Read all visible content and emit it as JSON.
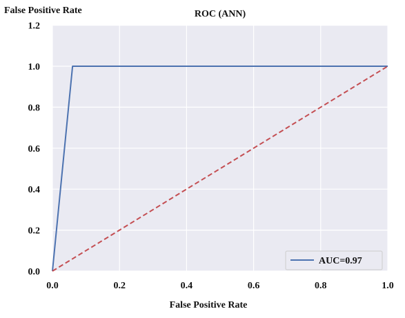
{
  "chart_data": {
    "type": "line",
    "title": "ROC (ANN)",
    "xlabel": "False Positive Rate",
    "ylabel": "False Positive Rate",
    "xlim": [
      0,
      1
    ],
    "ylim": [
      0,
      1.2
    ],
    "xticks": [
      "0.0",
      "0.2",
      "0.4",
      "0.6",
      "0.8",
      "1.0"
    ],
    "yticks": [
      "0.0",
      "0.2",
      "0.4",
      "0.6",
      "0.8",
      "1.0",
      "1.2"
    ],
    "grid": true,
    "legend_position": "bottom-right",
    "series": [
      {
        "name": "AUC=0.97",
        "style": "solid",
        "color": "#4c72b0",
        "x": [
          0.0,
          0.06,
          1.0
        ],
        "y": [
          0.0,
          1.0,
          1.0
        ]
      },
      {
        "style": "dashed",
        "color": "#c44e52",
        "x": [
          0.0,
          1.0
        ],
        "y": [
          0.0,
          1.0
        ]
      }
    ]
  }
}
